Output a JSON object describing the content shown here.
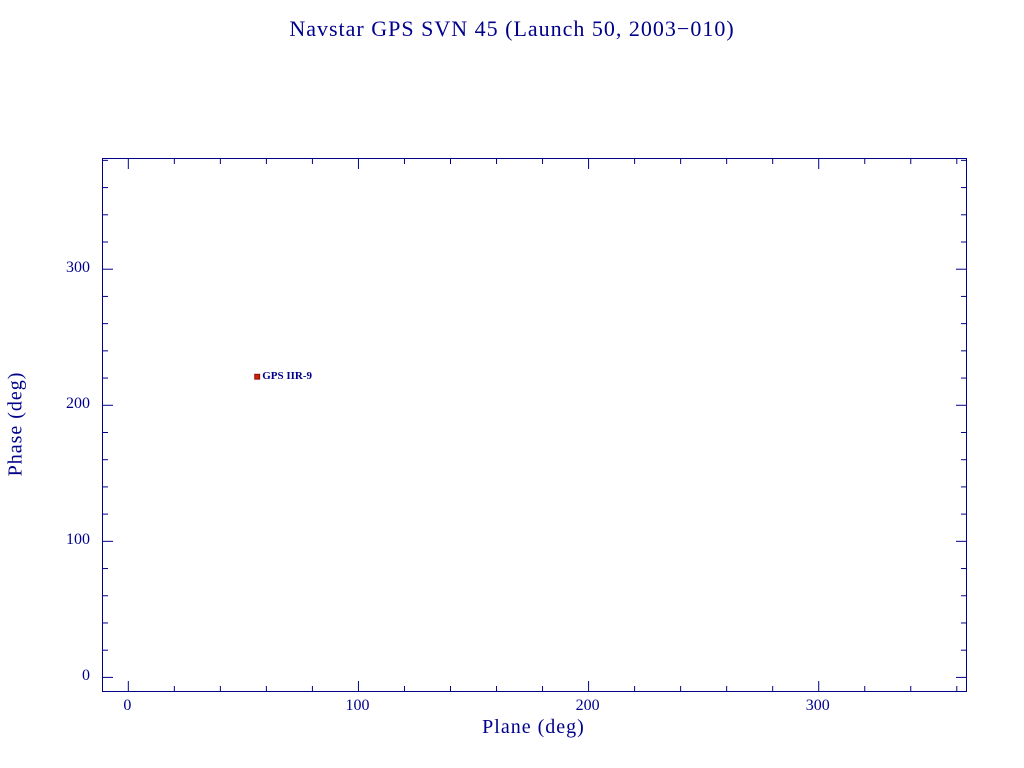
{
  "chart_data": {
    "type": "scatter",
    "title": "Navstar GPS SVN 45 (Launch 50, 2003−010)",
    "xlabel": "Plane (deg)",
    "ylabel": "Phase (deg)",
    "xlim": [
      -11,
      364
    ],
    "ylim": [
      -10,
      381
    ],
    "x_ticks": [
      0,
      100,
      200,
      300
    ],
    "y_ticks": [
      0,
      100,
      200,
      300
    ],
    "minor_tick_interval": 20,
    "grid": false,
    "legend": "none",
    "points": [
      {
        "label": "GPS IIR-9",
        "x": 56,
        "y": 221,
        "marker": "square",
        "color": "#cc2200"
      }
    ],
    "colors": {
      "axis": "#00008b",
      "text": "#00008b",
      "background": "#ffffff",
      "marker": "#cc2200"
    }
  }
}
